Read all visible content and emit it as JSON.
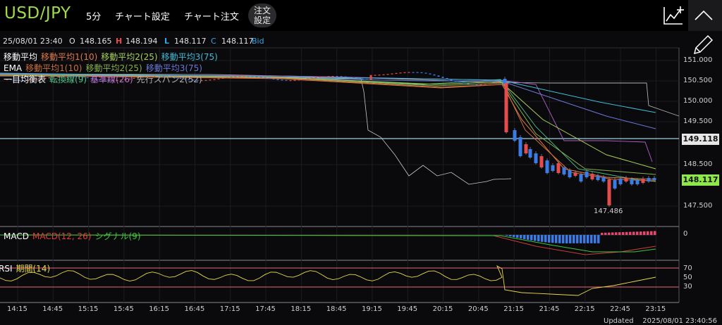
{
  "header": {
    "symbol": "USD/JPY",
    "interval": "5分",
    "chart_settings": "チャート設定",
    "chart_order": "チャート注文",
    "order_settings_line1": "注文",
    "order_settings_line2": "設定"
  },
  "ohlc": {
    "datetime": "25/08/01 23:40",
    "o_label": "O",
    "o_value": "148.165",
    "h_label": "H",
    "h_value": "148.194",
    "l_label": "L",
    "l_value": "148.117",
    "c_label": "C",
    "c_value": "148.117",
    "side": "Bid"
  },
  "indicators": {
    "ma": {
      "name": "移動平均",
      "p1": "移動平均1(10)",
      "p2": "移動平均2(25)",
      "p3": "移動平均3(75)"
    },
    "ema": {
      "name": "EMA",
      "p1": "移動平均1(10)",
      "p2": "移動平均2(25)",
      "p3": "移動平均3(75)"
    },
    "ichimoku": {
      "name": "一目均衡表",
      "tenkan": "転換線(9)",
      "kijun": "基準線(26)",
      "senkou2": "先行スパン2(52)"
    },
    "macd": {
      "name": "MACD",
      "macd": "MACD(12, 26)",
      "signal": "シグナル(9)"
    },
    "rsi": {
      "name": "RSI",
      "period": "期間(14)"
    }
  },
  "price_axis": [
    "151.000",
    "150.500",
    "150.000",
    "149.500",
    "148.500",
    "147.500"
  ],
  "hline_price": "149.118",
  "current_price": "148.117",
  "low_marker": "147.486",
  "macd_axis": "0",
  "rsi_axis": [
    "70",
    "50",
    "30"
  ],
  "time_axis": [
    "14:15",
    "14:45",
    "15:15",
    "15:45",
    "16:15",
    "16:45",
    "17:15",
    "17:45",
    "18:15",
    "18:45",
    "19:15",
    "19:45",
    "20:15",
    "20:45",
    "21:15",
    "21:45",
    "22:15",
    "22:45",
    "23:15"
  ],
  "updated_label": "Updated",
  "updated_time": "2025/08/01 23:40:56",
  "colors": {
    "symbol": "#9fd94e",
    "up": "#e74c4c",
    "down": "#3a7be6",
    "current": "#8fe84a",
    "ma1": "#e07a4a",
    "ma2": "#a8d05a",
    "ma3": "#3fbcd6"
  }
}
